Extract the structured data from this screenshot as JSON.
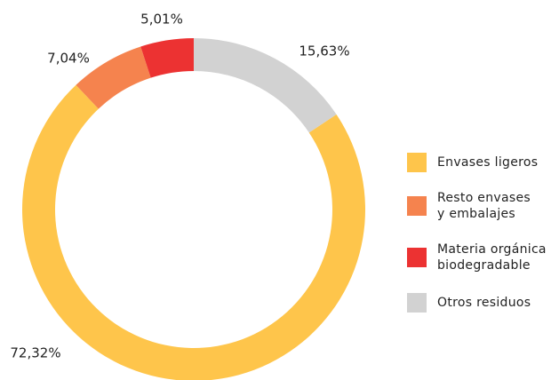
{
  "chart_data": {
    "type": "donut",
    "categories": [
      "Envases ligeros",
      "Resto envases\ny embalajes",
      "Materia orgánica\nbiodegradable",
      "Otros residuos"
    ],
    "values": [
      72.32,
      7.04,
      5.01,
      15.63
    ],
    "value_labels": [
      "72,32%",
      "7,04%",
      "5,01%",
      "15,63%"
    ],
    "colors": [
      "#fec54b",
      "#f5834e",
      "#ec3232",
      "#d2d2d2"
    ],
    "legend": "right"
  }
}
